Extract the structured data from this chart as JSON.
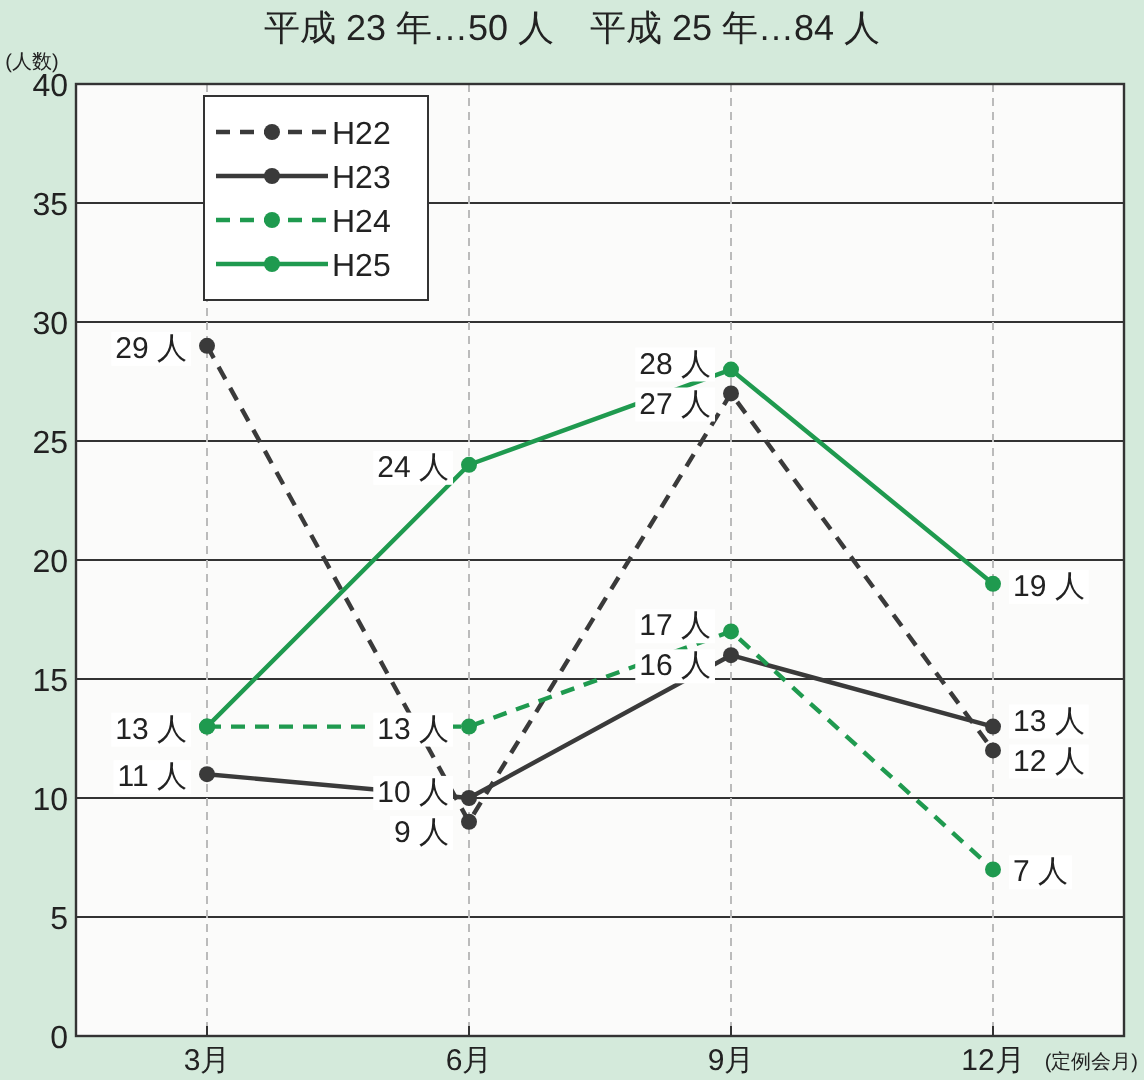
{
  "chart_data": {
    "type": "line",
    "title": "平成 23 年…50 人　平成 25 年…84 人",
    "ylabel": "(人数)",
    "xlabel": "(定例会月)",
    "categories": [
      "3月",
      "6月",
      "9月",
      "12月"
    ],
    "series": [
      {
        "name": "H22",
        "color": "#3a3a3a",
        "line_style": "dashed",
        "values": [
          29,
          9,
          27,
          12
        ],
        "value_labels": [
          "29 人",
          "9 人",
          "27 人",
          "12 人"
        ]
      },
      {
        "name": "H23",
        "color": "#3a3a3a",
        "line_style": "solid",
        "values": [
          11,
          10,
          16,
          13
        ],
        "value_labels": [
          "11 人",
          "10 人",
          "16 人",
          "13 人"
        ]
      },
      {
        "name": "H24",
        "color": "#1f9a4f",
        "line_style": "dashed",
        "values": [
          13,
          13,
          17,
          7
        ],
        "value_labels": [
          "13 人",
          "13 人",
          "17 人",
          "7 人"
        ]
      },
      {
        "name": "H25",
        "color": "#1f9a4f",
        "line_style": "solid",
        "values": [
          13,
          24,
          28,
          19
        ],
        "value_labels": [
          null,
          "24 人",
          "28 人",
          "19 人"
        ]
      }
    ],
    "ylim": [
      0,
      40
    ],
    "yticks": [
      0,
      5,
      10,
      15,
      20,
      25,
      30,
      35,
      40
    ],
    "grid": true,
    "legend": "top left",
    "marker": "circle"
  }
}
